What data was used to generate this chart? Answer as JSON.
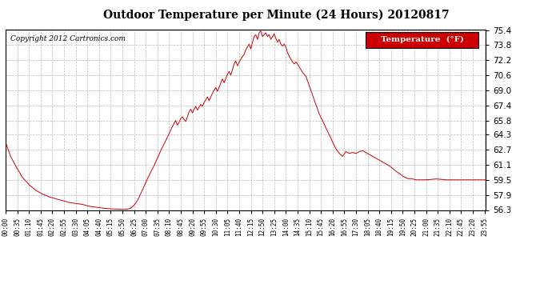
{
  "title": "Outdoor Temperature per Minute (24 Hours) 20120817",
  "copyright_text": "Copyright 2012 Cartronics.com",
  "legend_label": "Temperature  (°F)",
  "line_color": "#cc0000",
  "background_color": "#ffffff",
  "grid_color": "#aaaaaa",
  "legend_bg": "#cc0000",
  "legend_fg": "#ffffff",
  "yticks": [
    56.3,
    57.9,
    59.5,
    61.1,
    62.7,
    64.3,
    65.8,
    67.4,
    69.0,
    70.6,
    72.2,
    73.8,
    75.4
  ],
  "ymin": 56.3,
  "ymax": 75.4,
  "x_tick_interval": 35,
  "total_minutes": 1440,
  "key_points": [
    [
      0,
      63.5
    ],
    [
      15,
      62.0
    ],
    [
      30,
      61.0
    ],
    [
      50,
      59.8
    ],
    [
      70,
      59.0
    ],
    [
      90,
      58.4
    ],
    [
      110,
      58.0
    ],
    [
      130,
      57.7
    ],
    [
      150,
      57.5
    ],
    [
      170,
      57.3
    ],
    [
      190,
      57.1
    ],
    [
      210,
      57.0
    ],
    [
      230,
      56.9
    ],
    [
      250,
      56.7
    ],
    [
      270,
      56.6
    ],
    [
      290,
      56.5
    ],
    [
      305,
      56.45
    ],
    [
      315,
      56.42
    ],
    [
      325,
      56.4
    ],
    [
      335,
      56.38
    ],
    [
      345,
      56.37
    ],
    [
      355,
      56.36
    ],
    [
      365,
      56.38
    ],
    [
      375,
      56.5
    ],
    [
      385,
      56.8
    ],
    [
      395,
      57.3
    ],
    [
      405,
      58.0
    ],
    [
      415,
      58.8
    ],
    [
      425,
      59.6
    ],
    [
      435,
      60.3
    ],
    [
      445,
      61.0
    ],
    [
      455,
      61.8
    ],
    [
      465,
      62.6
    ],
    [
      475,
      63.3
    ],
    [
      485,
      64.0
    ],
    [
      495,
      64.8
    ],
    [
      505,
      65.5
    ],
    [
      510,
      65.8
    ],
    [
      515,
      65.3
    ],
    [
      520,
      65.6
    ],
    [
      525,
      66.0
    ],
    [
      530,
      66.2
    ],
    [
      535,
      65.9
    ],
    [
      540,
      65.7
    ],
    [
      545,
      66.2
    ],
    [
      550,
      66.7
    ],
    [
      555,
      67.0
    ],
    [
      560,
      66.6
    ],
    [
      565,
      67.0
    ],
    [
      570,
      67.3
    ],
    [
      575,
      66.9
    ],
    [
      580,
      67.2
    ],
    [
      585,
      67.5
    ],
    [
      590,
      67.3
    ],
    [
      595,
      67.7
    ],
    [
      600,
      68.0
    ],
    [
      605,
      68.3
    ],
    [
      610,
      67.9
    ],
    [
      615,
      68.3
    ],
    [
      620,
      68.7
    ],
    [
      625,
      69.0
    ],
    [
      630,
      69.3
    ],
    [
      635,
      68.9
    ],
    [
      640,
      69.3
    ],
    [
      645,
      69.8
    ],
    [
      650,
      70.2
    ],
    [
      655,
      69.8
    ],
    [
      660,
      70.3
    ],
    [
      665,
      70.7
    ],
    [
      670,
      71.0
    ],
    [
      675,
      70.6
    ],
    [
      680,
      71.2
    ],
    [
      685,
      71.8
    ],
    [
      690,
      72.1
    ],
    [
      695,
      71.6
    ],
    [
      700,
      72.0
    ],
    [
      705,
      72.3
    ],
    [
      710,
      72.6
    ],
    [
      715,
      72.8
    ],
    [
      720,
      73.3
    ],
    [
      725,
      73.6
    ],
    [
      730,
      73.9
    ],
    [
      735,
      73.4
    ],
    [
      740,
      74.1
    ],
    [
      745,
      74.7
    ],
    [
      750,
      74.9
    ],
    [
      755,
      74.4
    ],
    [
      760,
      75.1
    ],
    [
      765,
      75.3
    ],
    [
      770,
      74.7
    ],
    [
      775,
      74.9
    ],
    [
      780,
      75.1
    ],
    [
      785,
      74.7
    ],
    [
      790,
      74.9
    ],
    [
      795,
      74.4
    ],
    [
      800,
      74.7
    ],
    [
      805,
      75.0
    ],
    [
      810,
      74.5
    ],
    [
      815,
      74.1
    ],
    [
      820,
      74.4
    ],
    [
      825,
      73.9
    ],
    [
      830,
      73.7
    ],
    [
      835,
      73.9
    ],
    [
      840,
      73.6
    ],
    [
      845,
      73.0
    ],
    [
      850,
      72.6
    ],
    [
      855,
      72.3
    ],
    [
      860,
      72.0
    ],
    [
      865,
      71.8
    ],
    [
      870,
      72.0
    ],
    [
      875,
      71.8
    ],
    [
      880,
      71.5
    ],
    [
      885,
      71.2
    ],
    [
      890,
      70.9
    ],
    [
      895,
      70.7
    ],
    [
      900,
      70.5
    ],
    [
      910,
      69.5
    ],
    [
      920,
      68.5
    ],
    [
      930,
      67.5
    ],
    [
      940,
      66.5
    ],
    [
      950,
      65.8
    ],
    [
      960,
      65.0
    ],
    [
      970,
      64.3
    ],
    [
      980,
      63.5
    ],
    [
      990,
      62.8
    ],
    [
      1000,
      62.3
    ],
    [
      1010,
      62.0
    ],
    [
      1020,
      62.5
    ],
    [
      1030,
      62.3
    ],
    [
      1040,
      62.4
    ],
    [
      1050,
      62.3
    ],
    [
      1060,
      62.5
    ],
    [
      1070,
      62.6
    ],
    [
      1080,
      62.4
    ],
    [
      1090,
      62.2
    ],
    [
      1100,
      62.0
    ],
    [
      1110,
      61.8
    ],
    [
      1120,
      61.6
    ],
    [
      1130,
      61.4
    ],
    [
      1140,
      61.2
    ],
    [
      1150,
      61.0
    ],
    [
      1160,
      60.7
    ],
    [
      1170,
      60.4
    ],
    [
      1180,
      60.2
    ],
    [
      1190,
      59.9
    ],
    [
      1200,
      59.7
    ],
    [
      1210,
      59.6
    ],
    [
      1220,
      59.6
    ],
    [
      1230,
      59.5
    ],
    [
      1260,
      59.5
    ],
    [
      1290,
      59.6
    ],
    [
      1320,
      59.5
    ],
    [
      1350,
      59.5
    ],
    [
      1380,
      59.5
    ],
    [
      1410,
      59.5
    ],
    [
      1439,
      59.5
    ]
  ]
}
